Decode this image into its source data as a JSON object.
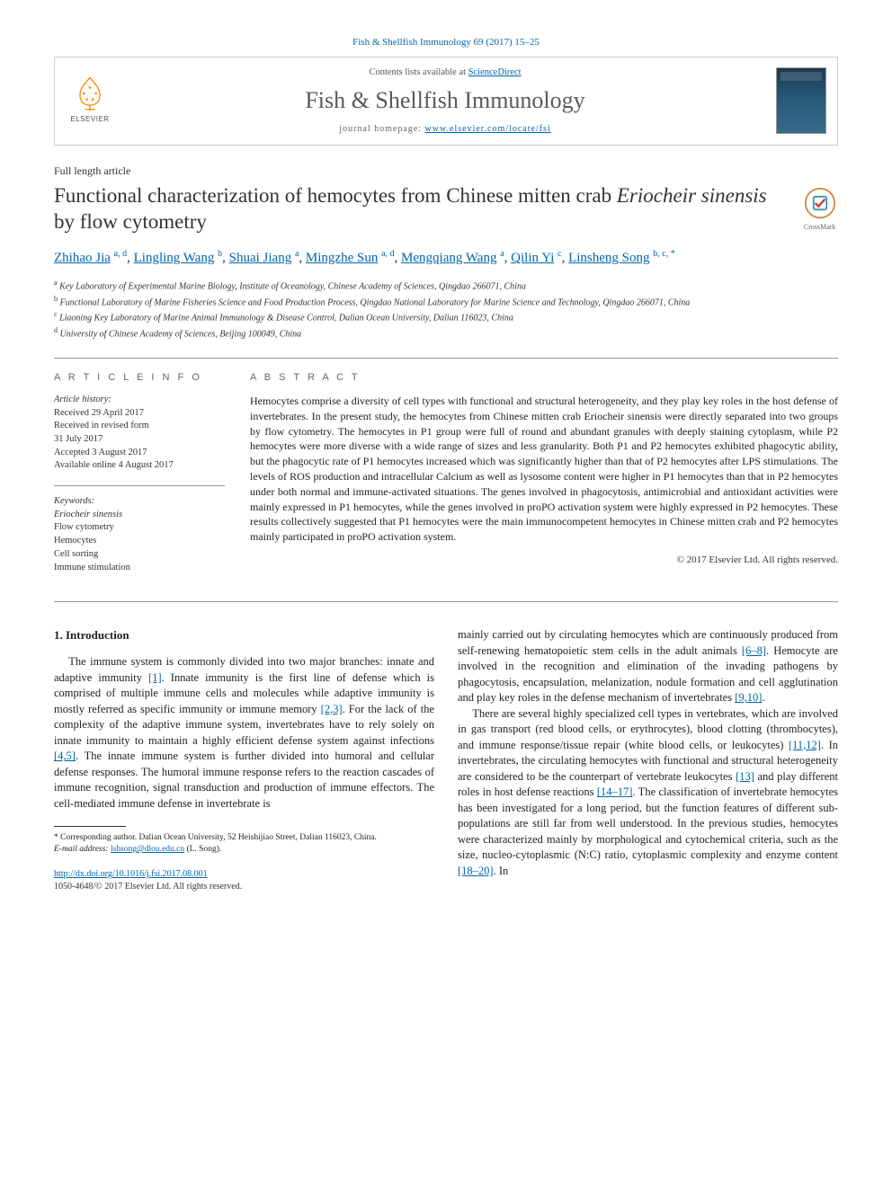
{
  "citation": "Fish & Shellfish Immunology 69 (2017) 15–25",
  "publisher": {
    "name": "ELSEVIER"
  },
  "contents": {
    "line_prefix": "Contents lists available at ",
    "line_link": "ScienceDirect",
    "journal": "Fish & Shellfish Immunology",
    "homepage_prefix": "journal homepage: ",
    "homepage_url": "www.elsevier.com/locate/fsi"
  },
  "article_type": "Full length article",
  "title_plain": "Functional characterization of hemocytes from Chinese mitten crab ",
  "title_italic": "Eriocheir sinensis",
  "title_rest": " by flow cytometry",
  "crossmark": "CrossMark",
  "authors": [
    {
      "name": "Zhihao Jia",
      "aff": "a, d"
    },
    {
      "name": "Lingling Wang",
      "aff": "b"
    },
    {
      "name": "Shuai Jiang",
      "aff": "a"
    },
    {
      "name": "Mingzhe Sun",
      "aff": "a, d"
    },
    {
      "name": "Mengqiang Wang",
      "aff": "a"
    },
    {
      "name": "Qilin Yi",
      "aff": "c"
    },
    {
      "name": "Linsheng Song",
      "aff": "b, c, *"
    }
  ],
  "affiliations": [
    {
      "key": "a",
      "text": "Key Laboratory of Experimental Marine Biology, Institute of Oceanology, Chinese Academy of Sciences, Qingdao 266071, China"
    },
    {
      "key": "b",
      "text": "Functional Laboratory of Marine Fisheries Science and Food Production Process, Qingdao National Laboratory for Marine Science and Technology, Qingdao 266071, China"
    },
    {
      "key": "c",
      "text": "Liaoning Key Laboratory of Marine Animal Immunology & Disease Control, Dalian Ocean University, Dalian 116023, China"
    },
    {
      "key": "d",
      "text": "University of Chinese Academy of Sciences, Beijing 100049, China"
    }
  ],
  "info": {
    "header": "A R T I C L E  I N F O",
    "history_label": "Article history:",
    "history": [
      "Received 29 April 2017",
      "Received in revised form",
      "31 July 2017",
      "Accepted 3 August 2017",
      "Available online 4 August 2017"
    ],
    "keywords_label": "Keywords:",
    "keywords": [
      "Eriocheir sinensis",
      "Flow cytometry",
      "Hemocytes",
      "Cell sorting",
      "Immune stimulation"
    ]
  },
  "abstract": {
    "header": "A B S T R A C T",
    "text": "Hemocytes comprise a diversity of cell types with functional and structural heterogeneity, and they play key roles in the host defense of invertebrates. In the present study, the hemocytes from Chinese mitten crab Eriocheir sinensis were directly separated into two groups by flow cytometry. The hemocytes in P1 group were full of round and abundant granules with deeply staining cytoplasm, while P2 hemocytes were more diverse with a wide range of sizes and less granularity. Both P1 and P2 hemocytes exhibited phagocytic ability, but the phagocytic rate of P1 hemocytes increased which was significantly higher than that of P2 hemocytes after LPS stimulations. The levels of ROS production and intracellular Calcium as well as lysosome content were higher in P1 hemocytes than that in P2 hemocytes under both normal and immune-activated situations. The genes involved in phagocytosis, antimicrobial and antioxidant activities were mainly expressed in P1 hemocytes, while the genes involved in proPO activation system were highly expressed in P2 hemocytes. These results collectively suggested that P1 hemocytes were the main immunocompetent hemocytes in Chinese mitten crab and P2 hemocytes mainly participated in proPO activation system.",
    "copyright": "© 2017 Elsevier Ltd. All rights reserved."
  },
  "introduction": {
    "heading": "1. Introduction",
    "para1_a": "The immune system is commonly divided into two major branches: innate and adaptive immunity ",
    "ref1": "[1]",
    "para1_b": ". Innate immunity is the first line of defense which is comprised of multiple immune cells and molecules while adaptive immunity is mostly referred as specific immunity or immune memory ",
    "ref2": "[2,3]",
    "para1_c": ". For the lack of the complexity of the adaptive immune system, invertebrates have to rely solely on innate immunity to maintain a highly efficient defense system against infections ",
    "ref3": "[4,5]",
    "para1_d": ". The innate immune system is further divided into humoral and cellular defense responses. The humoral immune response refers to the reaction cascades of immune recognition, signal transduction and production of immune effectors. The cell-mediated immune defense in invertebrate is",
    "para1_e": "mainly carried out by circulating hemocytes which are continuously produced from self-renewing hematopoietic stem cells in the adult animals ",
    "ref4": "[6–8]",
    "para1_f": ". Hemocyte are involved in the recognition and elimination of the invading pathogens by phagocytosis, encapsulation, melanization, nodule formation and cell agglutination and play key roles in the defense mechanism of invertebrates ",
    "ref5": "[9,10]",
    "para1_g": ".",
    "para2_a": "There are several highly specialized cell types in vertebrates, which are involved in gas transport (red blood cells, or erythrocytes), blood clotting (thrombocytes), and immune response/tissue repair (white blood cells, or leukocytes) ",
    "ref6": "[11,12]",
    "para2_b": ". In invertebrates, the circulating hemocytes with functional and structural heterogeneity are considered to be the counterpart of vertebrate leukocytes ",
    "ref7": "[13]",
    "para2_c": " and play different roles in host defense reactions ",
    "ref8": "[14–17]",
    "para2_d": ". The classification of invertebrate hemocytes has been investigated for a long period, but the function features of different sub-populations are still far from well understood. In the previous studies, hemocytes were characterized mainly by morphological and cytochemical criteria, such as the size, nucleo-cytoplasmic (N:C) ratio, cytoplasmic complexity and enzyme content ",
    "ref9": "[18–20]",
    "para2_e": ". In"
  },
  "footnote": {
    "corr": "* Corresponding author. Dalian Ocean University, 52 Heishijiao Street, Dalian 116023, China.",
    "email_label": "E-mail address:",
    "email": "lshsong@dlou.edu.cn",
    "email_suffix": "(L. Song)."
  },
  "doi": {
    "url": "http://dx.doi.org/10.1016/j.fsi.2017.08.001",
    "line2": "1050-4648/© 2017 Elsevier Ltd. All rights reserved."
  },
  "colors": {
    "link": "#0066aa",
    "text": "#222222",
    "rule": "#999999",
    "elsevier_orange": "#ff8a00"
  }
}
